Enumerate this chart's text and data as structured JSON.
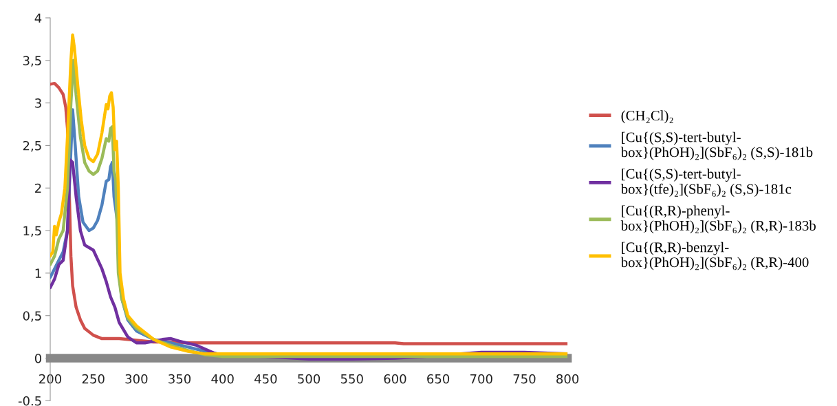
{
  "chart_data": {
    "type": "line",
    "xlim": [
      200,
      800
    ],
    "ylim": [
      -0.5,
      4
    ],
    "xticks": [
      200,
      250,
      300,
      350,
      400,
      450,
      500,
      550,
      600,
      650,
      700,
      750,
      800
    ],
    "yticks": [
      {
        "value": -0.5,
        "label": "-0.5"
      },
      0,
      {
        "value": 0.5,
        "label": "0,5"
      },
      1,
      {
        "value": 1.5,
        "label": "1,5"
      },
      2,
      {
        "value": 2.5,
        "label": "2,5"
      },
      3,
      {
        "value": 3.5,
        "label": "3,5"
      },
      4
    ],
    "grid": false,
    "legend": "right",
    "marker": "none",
    "line_style": "solid",
    "series": [
      {
        "name": "(CH₂Cl)₂",
        "color": "#d0504c",
        "x": [
          200,
          205,
          210,
          215,
          218,
          220,
          222,
          224,
          226,
          230,
          235,
          240,
          250,
          260,
          280,
          300,
          320,
          340,
          360,
          400,
          600,
          610,
          800
        ],
        "values": [
          3.22,
          3.23,
          3.18,
          3.1,
          2.95,
          2.7,
          2.0,
          1.2,
          0.85,
          0.6,
          0.45,
          0.35,
          0.27,
          0.23,
          0.23,
          0.21,
          0.19,
          0.19,
          0.18,
          0.18,
          0.18,
          0.17,
          0.17
        ]
      },
      {
        "name": "[Cu{(S,S)-tert-butyl-\nbox}(PhOH)₂](SbF₆)₂ (S,S)-181b",
        "color": "#4f81bd",
        "x": [
          200,
          205,
          210,
          215,
          220,
          223,
          226,
          229,
          233,
          238,
          245,
          250,
          255,
          260,
          265,
          268,
          270,
          272,
          274,
          276,
          278,
          280,
          283,
          290,
          300,
          320,
          340,
          360,
          380,
          400,
          450
        ],
        "values": [
          0.95,
          1.05,
          1.15,
          1.25,
          1.5,
          2.2,
          2.92,
          2.5,
          1.9,
          1.6,
          1.5,
          1.53,
          1.62,
          1.8,
          2.08,
          2.1,
          2.25,
          2.3,
          1.9,
          1.75,
          1.6,
          1.0,
          0.7,
          0.45,
          0.32,
          0.22,
          0.18,
          0.13,
          0.08,
          0.04,
          0.04
        ]
      },
      {
        "name": "[Cu{(S,S)-tert-butyl-\nbox}(tfe)₂](SbF₆)₂ (S,S)-181c",
        "color": "#7030a0",
        "x": [
          200,
          205,
          210,
          215,
          220,
          223,
          226,
          230,
          235,
          240,
          250,
          260,
          265,
          270,
          275,
          280,
          290,
          300,
          310,
          330,
          340,
          350,
          370,
          390,
          400,
          450,
          500,
          550,
          600,
          650,
          700,
          750,
          800
        ],
        "values": [
          0.83,
          0.93,
          1.1,
          1.15,
          1.5,
          2.33,
          2.3,
          1.9,
          1.5,
          1.33,
          1.27,
          1.05,
          0.9,
          0.72,
          0.6,
          0.42,
          0.25,
          0.18,
          0.18,
          0.22,
          0.23,
          0.2,
          0.15,
          0.06,
          0.03,
          0.02,
          -0.01,
          -0.01,
          0.0,
          0.03,
          0.07,
          0.07,
          0.05
        ]
      },
      {
        "name": "[Cu{(R,R)-phenyl-\nbox}(PhOH)₂](SbF₆)₂ (R,R)-183b",
        "color": "#9bbb59",
        "x": [
          200,
          205,
          210,
          215,
          220,
          224,
          227,
          230,
          235,
          240,
          245,
          250,
          255,
          260,
          265,
          268,
          270,
          272,
          274,
          276,
          279,
          283,
          290,
          300,
          320,
          340,
          360,
          380,
          400,
          800
        ],
        "values": [
          1.1,
          1.2,
          1.4,
          1.5,
          2.0,
          3.0,
          3.5,
          3.1,
          2.6,
          2.3,
          2.2,
          2.16,
          2.2,
          2.35,
          2.58,
          2.55,
          2.7,
          2.72,
          2.2,
          2.1,
          1.0,
          0.7,
          0.47,
          0.35,
          0.22,
          0.15,
          0.09,
          0.04,
          0.02,
          0.02
        ]
      },
      {
        "name": "[Cu{(R,R)-benzyl-\nbox}(PhOH)₂](SbF₆)₂ (R,R)-400",
        "color": "#ffc000",
        "x": [
          200,
          203,
          205,
          207,
          210,
          213,
          217,
          220,
          224,
          226,
          228,
          232,
          236,
          240,
          245,
          250,
          255,
          260,
          265,
          267,
          269,
          271,
          273,
          275,
          277,
          279,
          281,
          285,
          290,
          300,
          320,
          340,
          360,
          380,
          400,
          500,
          600,
          800
        ],
        "values": [
          1.2,
          1.25,
          1.55,
          1.45,
          1.6,
          1.7,
          2.0,
          2.6,
          3.5,
          3.8,
          3.65,
          3.2,
          2.8,
          2.5,
          2.35,
          2.31,
          2.4,
          2.65,
          2.98,
          2.93,
          3.08,
          3.12,
          2.95,
          2.45,
          2.55,
          2.0,
          1.0,
          0.7,
          0.5,
          0.38,
          0.22,
          0.13,
          0.08,
          0.05,
          0.05,
          0.05,
          0.05,
          0.05
        ]
      }
    ]
  }
}
